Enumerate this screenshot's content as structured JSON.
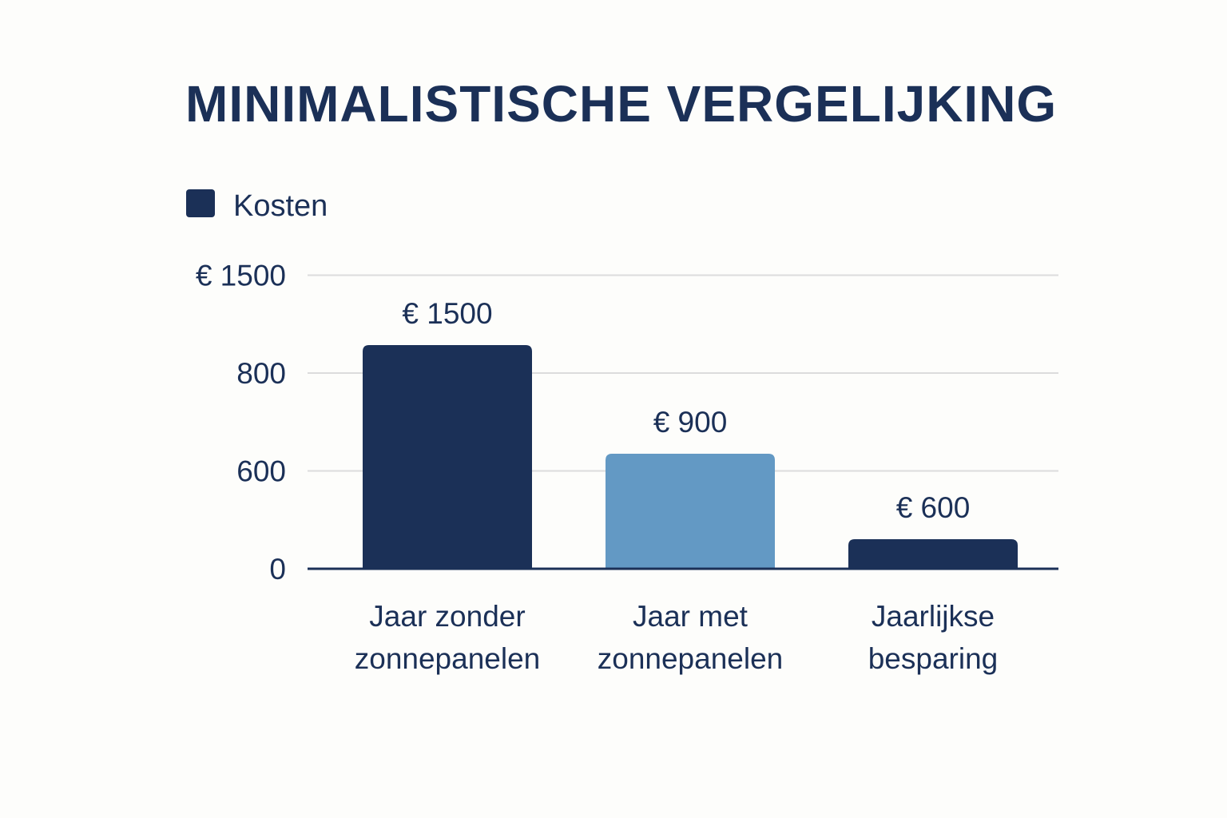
{
  "chart_data": {
    "type": "bar",
    "title": "MINIMALISTISCHE VERGELIJKING",
    "legend": [
      {
        "label": "Kosten",
        "color": "#1b3057"
      }
    ],
    "legend_placement": "top-left",
    "categories": [
      [
        "Jaar zonder",
        "zonnepanelen"
      ],
      [
        "Jaar met",
        "zonnepanelen"
      ],
      [
        "Jaarlijkse",
        "besparing"
      ]
    ],
    "values": [
      1500,
      900,
      600
    ],
    "value_labels": [
      "€ 1500",
      "€ 900",
      "€ 600"
    ],
    "bar_colors": [
      "#1b3057",
      "#6399c4",
      "#1b3057"
    ],
    "y_ticks": [
      {
        "value": 0,
        "label": "0"
      },
      {
        "value": 600,
        "label": "600"
      },
      {
        "value": 800,
        "label": "800"
      },
      {
        "value": 1500,
        "label": "€ 1500"
      }
    ],
    "grid": true,
    "xlabel": "",
    "ylabel": ""
  }
}
